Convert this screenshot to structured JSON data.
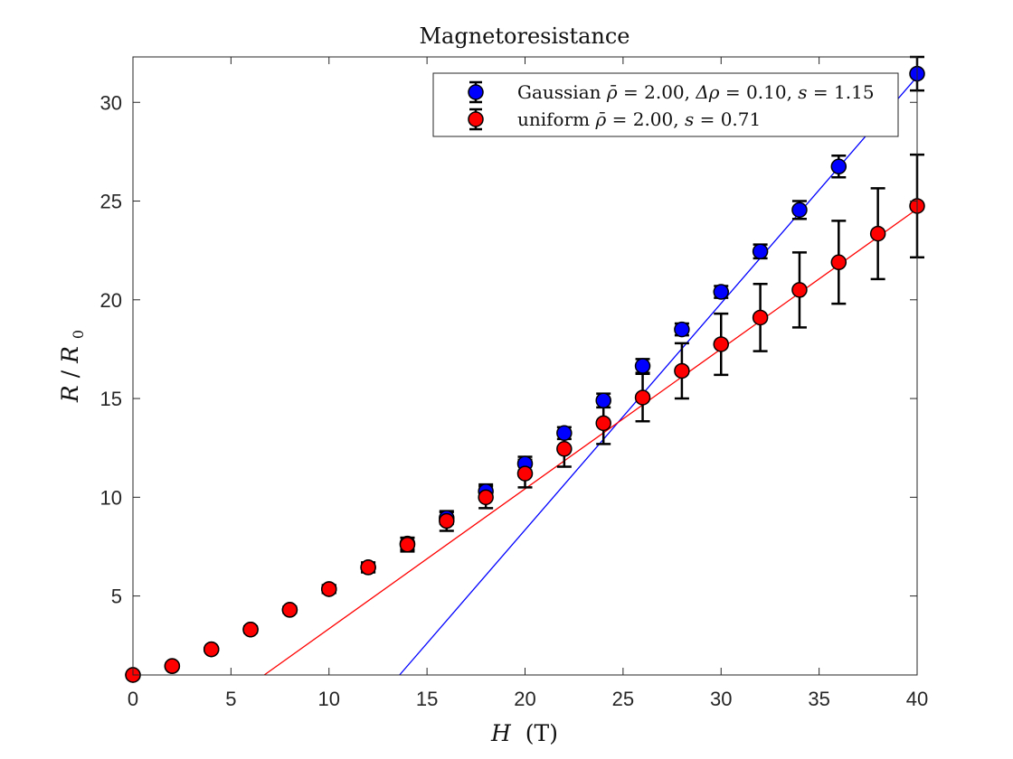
{
  "chart_data": {
    "type": "scatter",
    "title": "Magnetoresistance",
    "xlabel": {
      "var": "H",
      "unit": "(T)"
    },
    "ylabel": {
      "var": "R",
      "sep": "/",
      "var2": "R",
      "sub": "0"
    },
    "xlim": [
      0,
      40
    ],
    "ylim": [
      1,
      32.3
    ],
    "xticks": [
      0,
      5,
      10,
      15,
      20,
      25,
      30,
      35,
      40
    ],
    "yticks": [
      5,
      10,
      15,
      20,
      25,
      30
    ],
    "grid": false,
    "legend_position": "top-right",
    "series": [
      {
        "legend": {
          "prefix": "Gaussian ",
          "sym1": "ρ̄",
          "eq1": " = 2.00, ",
          "sym2": "Δρ",
          "eq2": " = 0.10, ",
          "sym3": "s",
          "eq3": " = 1.15"
        },
        "color": "#0000ff",
        "x": [
          0,
          2,
          4,
          6,
          8,
          10,
          12,
          14,
          16,
          18,
          20,
          22,
          24,
          26,
          28,
          30,
          32,
          34,
          36,
          40
        ],
        "y": [
          1.0,
          1.45,
          2.3,
          3.3,
          4.3,
          5.35,
          6.45,
          7.65,
          8.95,
          10.3,
          11.7,
          13.25,
          14.9,
          16.65,
          18.5,
          20.4,
          22.45,
          24.55,
          26.75,
          31.45
        ],
        "err": [
          0.05,
          0.1,
          0.1,
          0.15,
          0.15,
          0.2,
          0.25,
          0.3,
          0.3,
          0.35,
          0.35,
          0.3,
          0.35,
          0.35,
          0.3,
          0.3,
          0.35,
          0.45,
          0.55,
          0.85
        ],
        "fit_line": {
          "x": [
            13.6,
            40
          ],
          "y": [
            1.0,
            31.3
          ]
        }
      },
      {
        "legend": {
          "prefix": "uniform ",
          "sym1": "ρ̄",
          "eq1": " = 2.00, ",
          "sym3": "s",
          "eq3": " = 0.71"
        },
        "color": "#ff0000",
        "x": [
          0,
          2,
          4,
          6,
          8,
          10,
          12,
          14,
          16,
          18,
          20,
          22,
          24,
          26,
          28,
          30,
          32,
          34,
          36,
          38,
          40
        ],
        "y": [
          1.0,
          1.45,
          2.3,
          3.3,
          4.3,
          5.35,
          6.45,
          7.6,
          8.8,
          10.0,
          11.2,
          12.45,
          13.75,
          15.05,
          16.4,
          17.75,
          19.1,
          20.5,
          21.9,
          23.35,
          24.75
        ],
        "err": [
          0.05,
          0.1,
          0.1,
          0.15,
          0.15,
          0.2,
          0.25,
          0.35,
          0.5,
          0.55,
          0.7,
          0.9,
          1.05,
          1.2,
          1.4,
          1.55,
          1.7,
          1.9,
          2.1,
          2.3,
          2.6
        ],
        "fit_line": {
          "x": [
            6.7,
            40
          ],
          "y": [
            1.0,
            24.6
          ]
        }
      }
    ]
  }
}
